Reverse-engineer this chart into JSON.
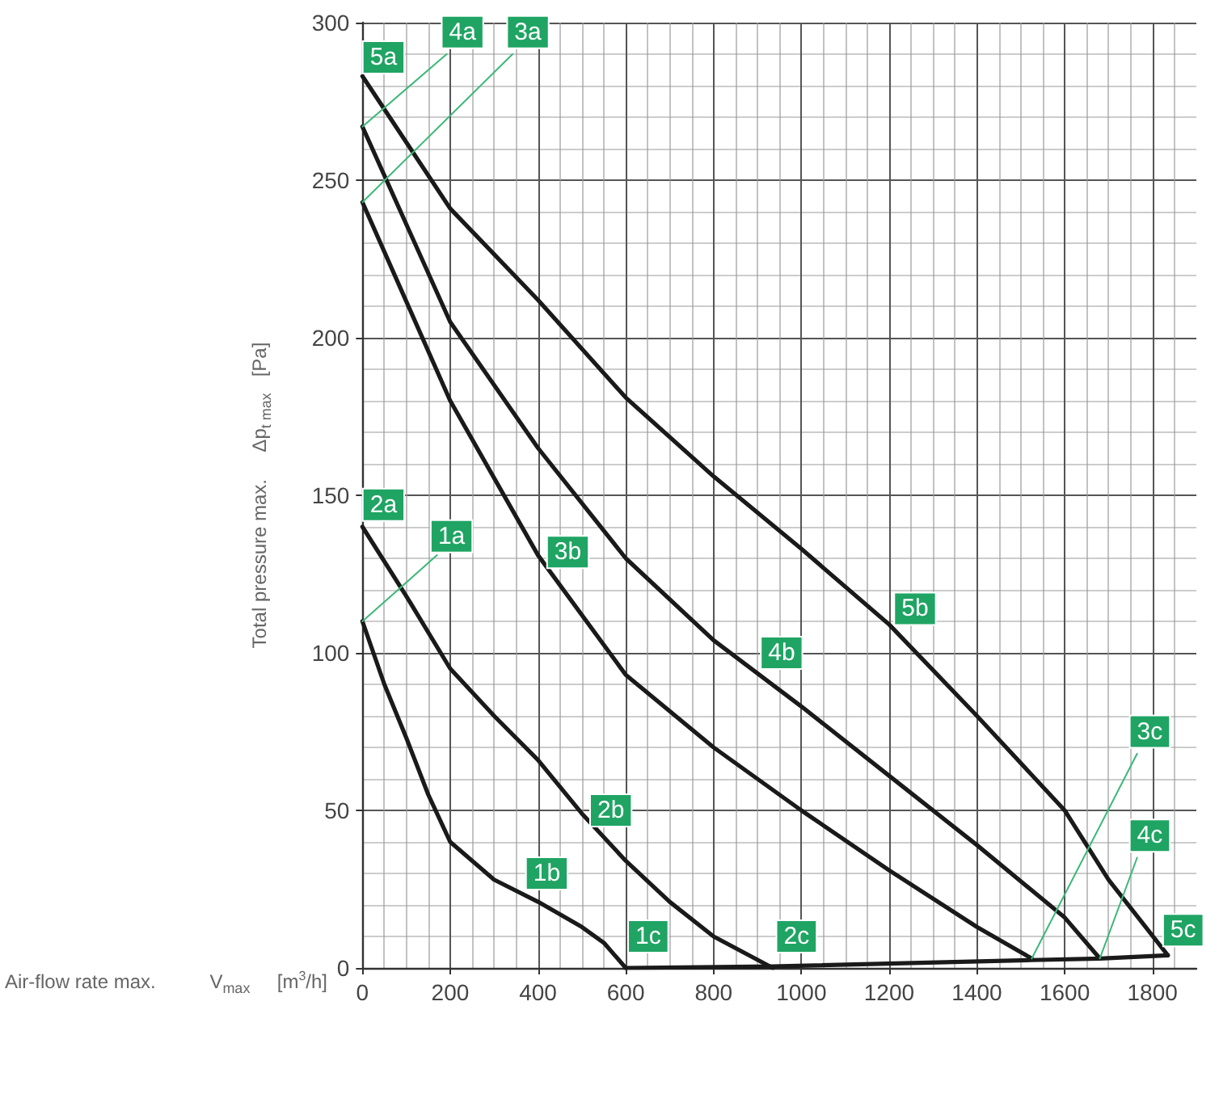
{
  "chart_data": {
    "type": "line",
    "xlabel": "Air-flow rate max.          V$_{max}$     [m$^{3}$/h]",
    "ylabel": "Total pressure max.     Δp$_{t max}$   [Pa]",
    "xlim": [
      0,
      1900
    ],
    "xticks": [
      0,
      200,
      400,
      600,
      800,
      1000,
      1200,
      1400,
      1600,
      1800
    ],
    "ylim": [
      0,
      300
    ],
    "yticks": [
      0,
      50,
      100,
      150,
      200,
      250,
      300
    ],
    "grid": true,
    "marker": "none",
    "line_style": "solid",
    "series": [
      {
        "color": "#1a1a1a",
        "x": [
          0,
          25,
          50,
          100,
          150,
          200,
          300,
          400,
          500,
          550,
          600
        ],
        "values": [
          110,
          100,
          90,
          73,
          55,
          40,
          28,
          21,
          13,
          8,
          0
        ]
      },
      {
        "color": "#1a1a1a",
        "x": [
          0,
          100,
          200,
          300,
          400,
          500,
          600,
          700,
          800,
          935
        ],
        "values": [
          140,
          118,
          95,
          80,
          66,
          49,
          34,
          21,
          10,
          0
        ]
      },
      {
        "color": "#1a1a1a",
        "x": [
          0,
          200,
          400,
          600,
          800,
          1000,
          1200,
          1400,
          1525
        ],
        "values": [
          243,
          180,
          131,
          93,
          70,
          50,
          31,
          13,
          3
        ]
      },
      {
        "color": "#1a1a1a",
        "x": [
          0,
          200,
          400,
          600,
          800,
          1000,
          1200,
          1400,
          1600,
          1680
        ],
        "values": [
          267,
          205,
          165,
          130,
          104,
          83,
          61,
          39,
          16,
          3
        ]
      },
      {
        "color": "#1a1a1a",
        "x": [
          0,
          200,
          400,
          600,
          800,
          1000,
          1200,
          1400,
          1600,
          1700,
          1835
        ],
        "values": [
          283,
          241,
          212,
          181,
          156,
          133,
          109,
          80,
          50,
          28,
          4
        ]
      },
      {
        "color": "#1a1a1a",
        "x": [
          600,
          935,
          1525,
          1680,
          1835
        ],
        "values": [
          0,
          0.5,
          2.5,
          3,
          4
        ]
      },
      {
        "color": "#3cb878",
        "x": [
          0,
          192
        ],
        "values": [
          267,
          290
        ]
      },
      {
        "color": "#3cb878",
        "x": [
          0,
          342
        ],
        "values": [
          243,
          290
        ]
      },
      {
        "color": "#3cb878",
        "x": [
          0,
          170
        ],
        "values": [
          110,
          131
        ]
      },
      {
        "color": "#3cb878",
        "x": [
          1525,
          1765
        ],
        "values": [
          3,
          68
        ]
      },
      {
        "color": "#3cb878",
        "x": [
          1680,
          1765
        ],
        "values": [
          3,
          35
        ]
      }
    ],
    "annotations": [
      {
        "text": "5a",
        "x": 48,
        "y": 289
      },
      {
        "text": "4a",
        "x": 228,
        "y": 297
      },
      {
        "text": "3a",
        "x": 377,
        "y": 297
      },
      {
        "text": "2a",
        "x": 48,
        "y": 147
      },
      {
        "text": "1a",
        "x": 203,
        "y": 137
      },
      {
        "text": "3b",
        "x": 468,
        "y": 132
      },
      {
        "text": "4b",
        "x": 955,
        "y": 100
      },
      {
        "text": "5b",
        "x": 1259,
        "y": 114
      },
      {
        "text": "2b",
        "x": 566,
        "y": 50
      },
      {
        "text": "1b",
        "x": 420,
        "y": 30
      },
      {
        "text": "1c",
        "x": 651,
        "y": 10
      },
      {
        "text": "2c",
        "x": 989,
        "y": 10
      },
      {
        "text": "3c",
        "x": 1794,
        "y": 75
      },
      {
        "text": "4c",
        "x": 1794,
        "y": 42
      },
      {
        "text": "5c",
        "x": 1870,
        "y": 12
      }
    ]
  }
}
